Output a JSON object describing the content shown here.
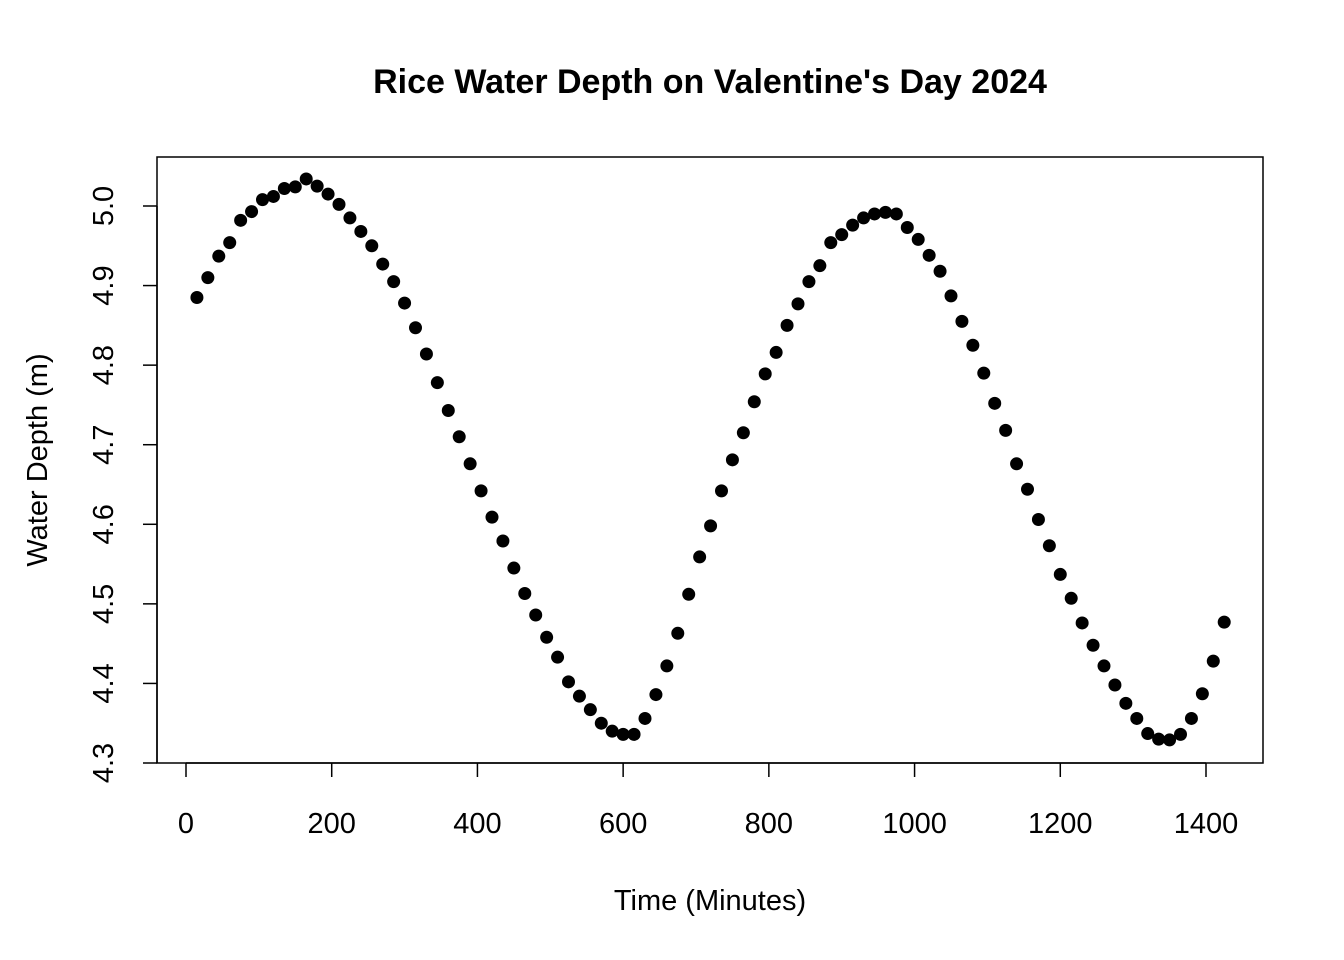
{
  "chart_data": {
    "type": "scatter",
    "title": "Rice Water Depth on Valentine's Day 2024",
    "xlabel": "Time (Minutes)",
    "ylabel": "Water Depth (m)",
    "xlim": [
      0,
      1440
    ],
    "ylim": [
      4.3,
      5.03
    ],
    "x_ticks": [
      0,
      200,
      400,
      600,
      800,
      1000,
      1200,
      1400
    ],
    "x_tick_labels": [
      "0",
      "200",
      "400",
      "600",
      "800",
      "1000",
      "1200",
      "1400"
    ],
    "y_ticks": [
      4.3,
      4.4,
      4.5,
      4.6,
      4.7,
      4.8,
      4.9,
      5.0
    ],
    "y_tick_labels": [
      "4.3",
      "4.4",
      "4.5",
      "4.6",
      "4.7",
      "4.8",
      "4.9",
      "5.0"
    ],
    "grid": false,
    "legend": "none",
    "marker_color": "#000000",
    "series": [
      {
        "x": [
          15,
          30,
          45,
          60,
          75,
          90,
          105,
          120,
          135,
          150,
          165,
          180,
          195,
          210,
          225,
          240,
          255,
          270,
          285,
          300,
          315,
          330,
          345,
          360,
          375,
          390,
          405,
          420,
          435,
          450,
          465,
          480,
          495,
          510,
          525,
          540,
          555,
          570,
          585,
          600,
          615,
          630,
          645,
          660,
          675,
          690,
          705,
          720,
          735,
          750,
          765,
          780,
          795,
          810,
          825,
          840,
          855,
          870,
          885,
          900,
          915,
          930,
          945,
          960,
          975,
          990,
          1005,
          1020,
          1035,
          1050,
          1065,
          1080,
          1095,
          1110,
          1125,
          1140,
          1155,
          1170,
          1185,
          1200,
          1215,
          1230,
          1245,
          1260,
          1275,
          1290,
          1305,
          1320,
          1335,
          1350,
          1365,
          1380,
          1395,
          1410,
          1425
        ],
        "y": [
          4.885,
          4.91,
          4.937,
          4.954,
          4.982,
          4.993,
          5.008,
          5.012,
          5.022,
          5.024,
          5.034,
          5.025,
          5.015,
          5.002,
          4.985,
          4.968,
          4.95,
          4.927,
          4.905,
          4.878,
          4.847,
          4.814,
          4.778,
          4.743,
          4.71,
          4.676,
          4.642,
          4.609,
          4.579,
          4.545,
          4.513,
          4.486,
          4.458,
          4.433,
          4.402,
          4.384,
          4.367,
          4.35,
          4.34,
          4.336,
          4.336,
          4.356,
          4.386,
          4.422,
          4.463,
          4.512,
          4.559,
          4.598,
          4.642,
          4.681,
          4.715,
          4.754,
          4.789,
          4.816,
          4.85,
          4.877,
          4.905,
          4.925,
          4.954,
          4.964,
          4.976,
          4.985,
          4.99,
          4.992,
          4.99,
          4.973,
          4.958,
          4.938,
          4.918,
          4.887,
          4.855,
          4.825,
          4.79,
          4.752,
          4.718,
          4.676,
          4.644,
          4.606,
          4.573,
          4.537,
          4.507,
          4.476,
          4.448,
          4.422,
          4.398,
          4.375,
          4.356,
          4.337,
          4.33,
          4.329,
          4.336,
          4.356,
          4.387,
          4.428,
          4.477
        ]
      }
    ]
  }
}
